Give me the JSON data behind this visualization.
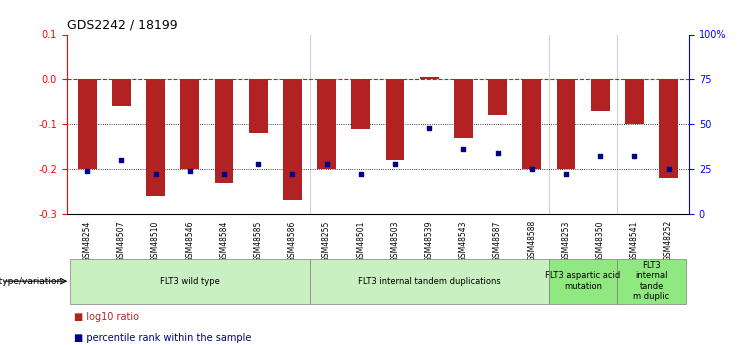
{
  "title": "GDS2242 / 18199",
  "samples": [
    "GSM48254",
    "GSM48507",
    "GSM48510",
    "GSM48546",
    "GSM48584",
    "GSM48585",
    "GSM48586",
    "GSM48255",
    "GSM48501",
    "GSM48503",
    "GSM48539",
    "GSM48543",
    "GSM48587",
    "GSM48588",
    "GSM48253",
    "GSM48350",
    "GSM48541",
    "GSM48252"
  ],
  "log10_ratio": [
    -0.2,
    -0.06,
    -0.26,
    -0.2,
    -0.23,
    -0.12,
    -0.27,
    -0.2,
    -0.11,
    -0.18,
    0.005,
    -0.13,
    -0.08,
    -0.2,
    -0.2,
    -0.07,
    -0.1,
    -0.22
  ],
  "percentile_rank": [
    24,
    30,
    22,
    24,
    22,
    28,
    22,
    28,
    22,
    28,
    48,
    36,
    34,
    25,
    22,
    32,
    32,
    25
  ],
  "group_configs": [
    {
      "label": "FLT3 wild type",
      "start": 0,
      "end": 6,
      "color": "#c8f0c0"
    },
    {
      "label": "FLT3 internal tandem duplications",
      "start": 7,
      "end": 13,
      "color": "#c8f0c0"
    },
    {
      "label": "FLT3 aspartic acid\nmutation",
      "start": 14,
      "end": 15,
      "color": "#90e880"
    },
    {
      "label": "FLT3\ninternal\ntande\nm duplic",
      "start": 16,
      "end": 17,
      "color": "#90e880"
    }
  ],
  "bar_color": "#b22222",
  "dot_color": "#00008b",
  "ylim_left": [
    -0.3,
    0.1
  ],
  "ylim_right": [
    0,
    100
  ],
  "yticks_left": [
    -0.3,
    -0.2,
    -0.1,
    0.0,
    0.1
  ],
  "yticks_right": [
    0,
    25,
    50,
    75,
    100
  ],
  "yticklabels_right": [
    "0",
    "25",
    "50",
    "75",
    "100%"
  ],
  "dotted_lines": [
    -0.1,
    -0.2
  ],
  "separators": [
    6.5,
    13.5,
    15.5
  ],
  "bar_width": 0.55,
  "legend_items": [
    {
      "color": "#b22222",
      "label": "log10 ratio"
    },
    {
      "color": "#00008b",
      "label": "percentile rank within the sample"
    }
  ]
}
